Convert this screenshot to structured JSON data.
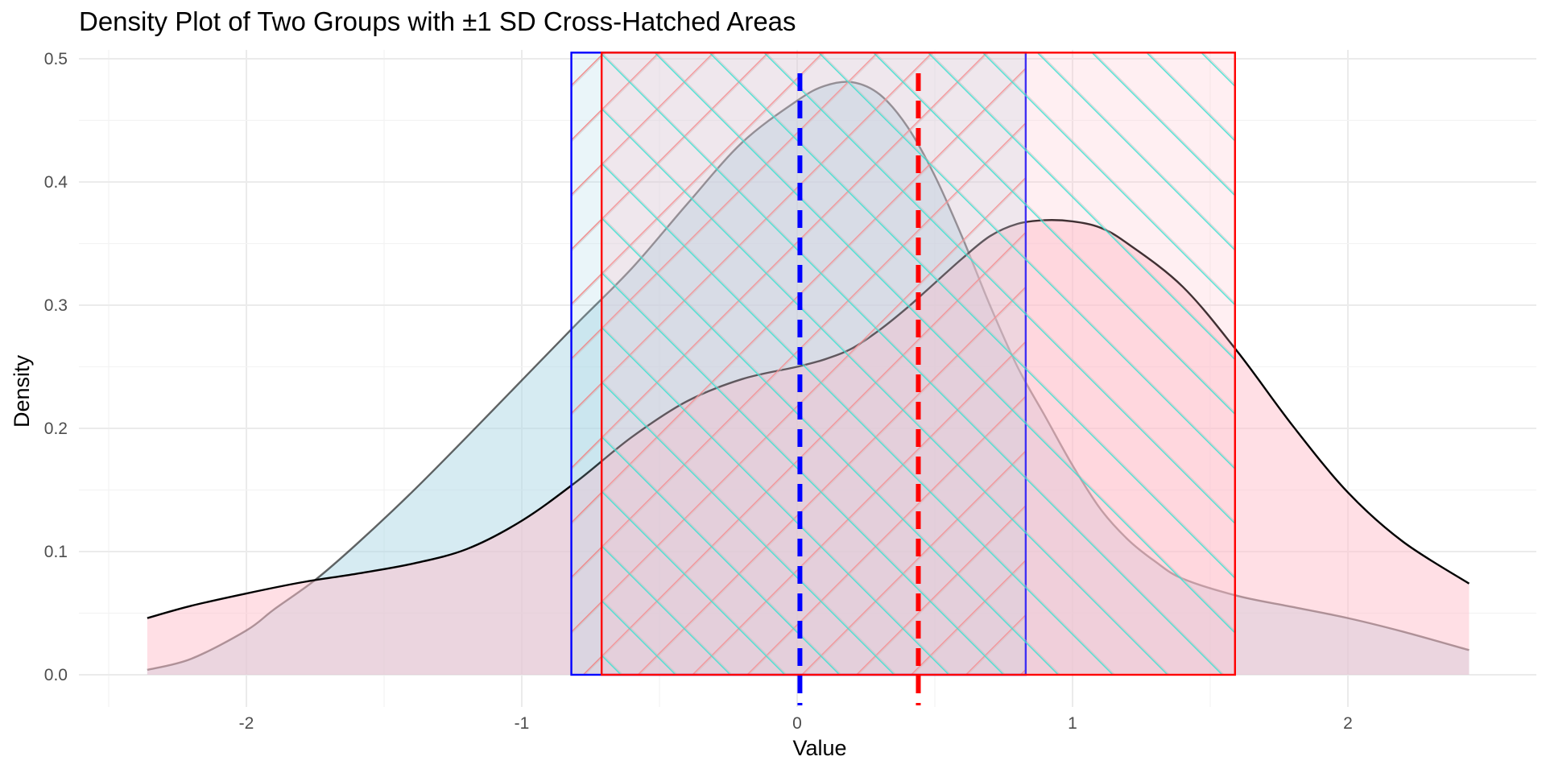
{
  "chart_data": {
    "type": "area",
    "title": "Density Plot of Two Groups with ±1 SD Cross-Hatched Areas",
    "xlabel": "Value",
    "ylabel": "Density",
    "xlim": [
      -2.5,
      2.5
    ],
    "ylim": [
      0,
      0.5
    ],
    "xticks": [
      -2,
      -1,
      0,
      1,
      2
    ],
    "yticks": [
      0.0,
      0.1,
      0.2,
      0.3,
      0.4,
      0.5
    ],
    "ytick_labels": [
      "0.0",
      "0.1",
      "0.2",
      "0.3",
      "0.4",
      "0.5"
    ],
    "grid": true,
    "series": [
      {
        "fill": "#ADD8E6",
        "x": [
          -2.36,
          -2.2,
          -2.0,
          -1.9,
          -1.75,
          -1.6,
          -1.4,
          -1.2,
          -1.0,
          -0.8,
          -0.6,
          -0.4,
          -0.2,
          0.0,
          0.1,
          0.2,
          0.3,
          0.4,
          0.5,
          0.6,
          0.7,
          0.8,
          0.9,
          1.0,
          1.1,
          1.2,
          1.3,
          1.4,
          1.6,
          1.8,
          2.0,
          2.2,
          2.44
        ],
        "y": [
          0.004,
          0.013,
          0.036,
          0.053,
          0.077,
          0.106,
          0.148,
          0.193,
          0.239,
          0.285,
          0.33,
          0.382,
          0.432,
          0.466,
          0.478,
          0.481,
          0.471,
          0.445,
          0.405,
          0.355,
          0.3,
          0.25,
          0.21,
          0.17,
          0.135,
          0.11,
          0.092,
          0.078,
          0.064,
          0.055,
          0.046,
          0.035,
          0.02
        ]
      },
      {
        "fill": "#FFC0CB",
        "x": [
          -2.36,
          -2.2,
          -2.0,
          -1.8,
          -1.6,
          -1.4,
          -1.2,
          -1.0,
          -0.8,
          -0.6,
          -0.4,
          -0.2,
          0.0,
          0.1,
          0.2,
          0.3,
          0.4,
          0.5,
          0.6,
          0.7,
          0.8,
          0.9,
          1.0,
          1.1,
          1.2,
          1.4,
          1.6,
          1.8,
          2.0,
          2.2,
          2.44
        ],
        "y": [
          0.046,
          0.056,
          0.066,
          0.075,
          0.082,
          0.09,
          0.102,
          0.125,
          0.157,
          0.193,
          0.222,
          0.24,
          0.25,
          0.256,
          0.265,
          0.28,
          0.298,
          0.318,
          0.338,
          0.356,
          0.366,
          0.369,
          0.368,
          0.363,
          0.35,
          0.315,
          0.262,
          0.202,
          0.148,
          0.108,
          0.074
        ]
      }
    ],
    "mean_lines": [
      {
        "x": 0.01,
        "color": "#0000FF"
      },
      {
        "x": 0.44,
        "color": "#FF0000"
      }
    ],
    "sd_areas": [
      {
        "xmin": -0.82,
        "xmax": 0.83,
        "border": "#0000FF",
        "fill": "#ADD8E6",
        "hatch_color": "#F08080",
        "hatch_angle": 45
      },
      {
        "xmin": -0.71,
        "xmax": 1.59,
        "border": "#FF0000",
        "fill": "#FFC0CB",
        "hatch_color": "#40E0D0",
        "hatch_angle": -45
      }
    ]
  }
}
